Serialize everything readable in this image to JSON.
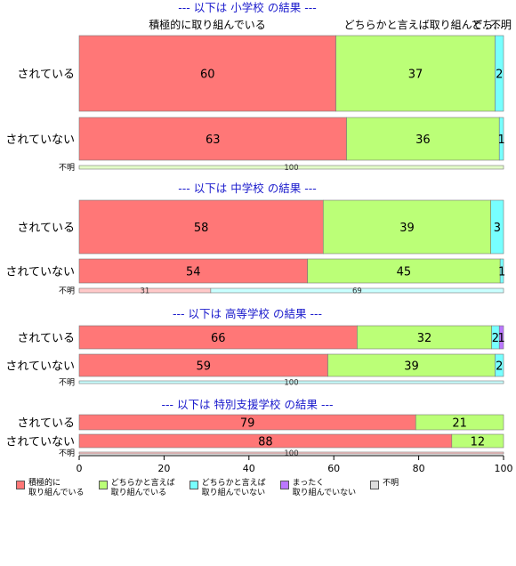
{
  "chart_data": {
    "type": "bar",
    "orientation": "horizontal",
    "stacked": true,
    "xlim": [
      0,
      100
    ],
    "x_ticks": [
      "0",
      "20",
      "40",
      "60",
      "80",
      "100"
    ],
    "top_labels": [
      "積極的に取り組んでいる",
      "どちらかと言えば取り組んで...",
      "どち...",
      "不明"
    ],
    "legend": {
      "placement": "bottom",
      "entries": [
        {
          "label": "積極的に\n取り組んでいる",
          "color": "#ff7777"
        },
        {
          "label": "どちらかと言えば\n取り組んでいる",
          "color": "#bbff77"
        },
        {
          "label": "どちらかと言えば\n取り組んでいない",
          "color": "#77ffff"
        },
        {
          "label": "まったく\n取り組んでいない",
          "color": "#bb77ff"
        },
        {
          "label": "不明",
          "color": "#dddddd"
        }
      ]
    },
    "panels": [
      {
        "title": "--- 以下は 小学校 の結果 ---",
        "rows": [
          {
            "category": "されている",
            "values": [
              60.5,
              37.5,
              2,
              0,
              0
            ],
            "labels": [
              "60",
              "37",
              "2",
              "",
              ""
            ]
          },
          {
            "category": "されていない",
            "values": [
              63,
              36,
              1,
              0,
              0
            ],
            "labels": [
              "63",
              "36",
              "1",
              "",
              ""
            ]
          },
          {
            "category": "不明",
            "values": [
              0,
              0,
              0,
              0,
              100
            ],
            "labels": [
              "",
              "",
              "",
              "",
              "100"
            ],
            "small": true,
            "colors": [
              "#ff7777",
              "#bbff77",
              "#77ffff",
              "#bb77ff",
              "#bbff77"
            ]
          }
        ]
      },
      {
        "title": "--- 以下は 中学校 の結果 ---",
        "rows": [
          {
            "category": "されている",
            "values": [
              57.5,
              39.5,
              3,
              0,
              0
            ],
            "labels": [
              "58",
              "39",
              "3",
              "",
              ""
            ]
          },
          {
            "category": "されていない",
            "values": [
              53.8,
              45.4,
              0.8,
              0,
              0
            ],
            "labels": [
              "54",
              "45",
              "1",
              "",
              ""
            ]
          },
          {
            "category": "不明",
            "values": [
              31,
              0,
              69,
              0,
              0
            ],
            "labels": [
              "31",
              "",
              "69",
              "",
              ""
            ],
            "small": true
          }
        ]
      },
      {
        "title": "--- 以下は 高等学校 の結果 ---",
        "rows": [
          {
            "category": "されている",
            "values": [
              65.5,
              31.7,
              1.8,
              1,
              0
            ],
            "labels": [
              "66",
              "32",
              "2",
              "1",
              ""
            ]
          },
          {
            "category": "されていない",
            "values": [
              58.6,
              39.4,
              2,
              0,
              0
            ],
            "labels": [
              "59",
              "39",
              "2",
              "",
              ""
            ]
          },
          {
            "category": "不明",
            "values": [
              0,
              0,
              0,
              0,
              100
            ],
            "labels": [
              "",
              "",
              "",
              "",
              "100"
            ],
            "small": true,
            "colors": [
              "#ff7777",
              "#bbff77",
              "#77ffff",
              "#bb77ff",
              "#77ffff"
            ]
          }
        ]
      },
      {
        "title": "--- 以下は 特別支援学校 の結果 ---",
        "rows": [
          {
            "category": "されている",
            "values": [
              79.3,
              20.7,
              0,
              0,
              0
            ],
            "labels": [
              "79",
              "21",
              "",
              "",
              ""
            ]
          },
          {
            "category": "されていない",
            "values": [
              87.8,
              12.2,
              0,
              0,
              0
            ],
            "labels": [
              "88",
              "12",
              "",
              "",
              ""
            ]
          },
          {
            "category": "不明",
            "values": [
              100,
              0,
              0,
              0,
              0
            ],
            "labels": [
              "100",
              "",
              "",
              "",
              ""
            ],
            "small": true
          }
        ]
      }
    ]
  }
}
